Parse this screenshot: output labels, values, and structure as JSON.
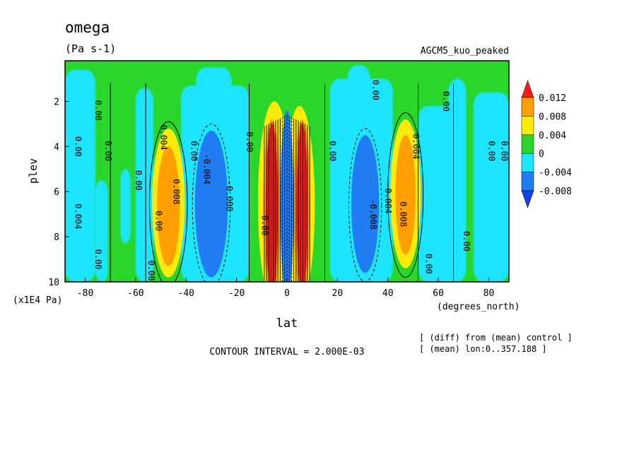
{
  "chart_data": {
    "type": "heatmap",
    "title": "omega",
    "units": "(Pa s-1)",
    "experiment": "AGCM5_kuo_peaked",
    "xlabel": "lat",
    "x_units": "(degrees_north)",
    "ylabel": "plev",
    "y_units": "(x1E4 Pa)",
    "xlim": [
      -88,
      88
    ],
    "ylim": [
      10,
      0.2
    ],
    "x_ticks": [
      "-80",
      "-60",
      "-40",
      "-20",
      "0",
      "20",
      "40",
      "60",
      "80"
    ],
    "y_ticks": [
      "2",
      "4",
      "6",
      "8",
      "10"
    ],
    "contour_interval_text": "CONTOUR INTERVAL = 2.000E-03",
    "footnotes": [
      "[ (diff) from (mean) control ]",
      "[ (mean) lon:0..357.188 ]"
    ],
    "colorbar": {
      "labels": [
        "0.012",
        "0.008",
        "0.004",
        "0",
        "-0.004",
        "-0.008"
      ],
      "colors": [
        "#ff1a1a",
        "#ff9f00",
        "#ffeb0a",
        "#29d629",
        "#1ee6ff",
        "#1f7cf2",
        "#1740e0"
      ]
    },
    "contour_labels": [
      "0.00",
      "0.004",
      "0.008",
      "0.012",
      "-0.004",
      "-0.008"
    ],
    "features": [
      {
        "lat_center": -47,
        "plev_range": [
          3.5,
          9.6
        ],
        "sign": "positive",
        "peak": 0.008
      },
      {
        "lat_center": -30,
        "plev_range": [
          3.2,
          9.8
        ],
        "sign": "negative",
        "peak": -0.008
      },
      {
        "lat_center": -5,
        "plev_range": [
          2.8,
          10
        ],
        "sign": "positive",
        "peak": 0.012
      },
      {
        "lat_center": 0,
        "plev_range": [
          2.5,
          10
        ],
        "sign": "negative",
        "peak": -0.008
      },
      {
        "lat_center": 5,
        "plev_range": [
          2.8,
          10
        ],
        "sign": "positive",
        "peak": 0.012
      },
      {
        "lat_center": 31,
        "plev_range": [
          3.5,
          9.6
        ],
        "sign": "negative",
        "peak": -0.008
      },
      {
        "lat_center": 47,
        "plev_range": [
          3.0,
          9.2
        ],
        "sign": "positive",
        "peak": 0.008
      }
    ]
  }
}
